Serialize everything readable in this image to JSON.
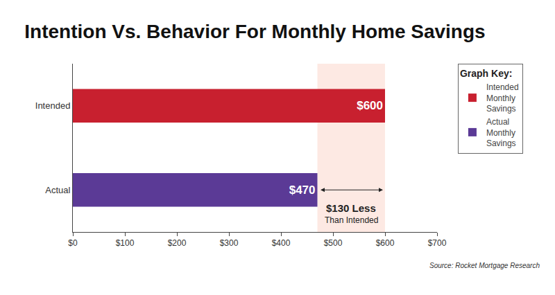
{
  "chart_data": {
    "type": "bar",
    "title": "Intention Vs. Behavior For Monthly Home Savings",
    "orientation": "horizontal",
    "categories": [
      "Intended",
      "Actual"
    ],
    "series": [
      {
        "name": "Intended Monthly Savings",
        "color": "#c8202f",
        "values": [
          600,
          null
        ],
        "value_labels": [
          "$600",
          null
        ]
      },
      {
        "name": "Actual Monthly Savings",
        "color": "#5b3a96",
        "values": [
          null,
          470
        ],
        "value_labels": [
          null,
          "$470"
        ]
      }
    ],
    "xlim": [
      0,
      700
    ],
    "xticks": [
      {
        "value": 0,
        "label": "$0"
      },
      {
        "value": 100,
        "label": "$100"
      },
      {
        "value": 200,
        "label": "$200"
      },
      {
        "value": 300,
        "label": "$300"
      },
      {
        "value": 400,
        "label": "$400"
      },
      {
        "value": 500,
        "label": "$500"
      },
      {
        "value": 600,
        "label": "$600"
      },
      {
        "value": 700,
        "label": "$700"
      }
    ],
    "grid": false,
    "data_labels": true,
    "legend": "top right",
    "legend_title": "Graph Key:",
    "annotations": [
      "$130 Less",
      "Than Intended"
    ],
    "source": "Source: Rocket Mortgage Research"
  }
}
